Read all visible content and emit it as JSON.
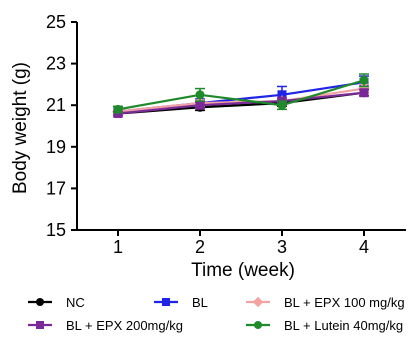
{
  "chart_data": {
    "type": "line",
    "title": "",
    "xlabel": "Time (week)",
    "ylabel": "Body weight (g)",
    "x": [
      1,
      2,
      3,
      4
    ],
    "x_tick_labels": [
      "1",
      "2",
      "3",
      "4"
    ],
    "ylim": [
      15,
      25
    ],
    "y_ticks": [
      15,
      17,
      19,
      21,
      23,
      25
    ],
    "y_tick_labels": [
      "15",
      "17",
      "19",
      "21",
      "23",
      "25"
    ],
    "grid": false,
    "legend_position": "bottom",
    "series": [
      {
        "name": "NC",
        "color": "#000000",
        "marker": "circle",
        "values": [
          20.6,
          20.9,
          21.1,
          21.6
        ],
        "errors": [
          0.1,
          0.15,
          0.15,
          0.15
        ]
      },
      {
        "name": "BL",
        "color": "#1f24e6",
        "marker": "square",
        "values": [
          20.7,
          21.1,
          21.5,
          22.1
        ],
        "errors": [
          0.1,
          0.2,
          0.4,
          0.3
        ]
      },
      {
        "name": "BL + EPX 100 mg/kg",
        "color": "#f4a3a3",
        "marker": "diamond",
        "values": [
          20.7,
          21.1,
          21.2,
          21.8
        ],
        "errors": [
          0.1,
          0.15,
          0.15,
          0.2
        ]
      },
      {
        "name": "BL + EPX 200mg/kg",
        "color": "#7a2a96",
        "marker": "square",
        "values": [
          20.6,
          21.0,
          21.2,
          21.6
        ],
        "errors": [
          0.1,
          0.15,
          0.15,
          0.15
        ]
      },
      {
        "name": "BL + Lutein 40mg/kg",
        "color": "#1f8a2a",
        "marker": "circle",
        "values": [
          20.8,
          21.5,
          21.0,
          22.2
        ],
        "errors": [
          0.15,
          0.3,
          0.2,
          0.3
        ]
      }
    ]
  }
}
